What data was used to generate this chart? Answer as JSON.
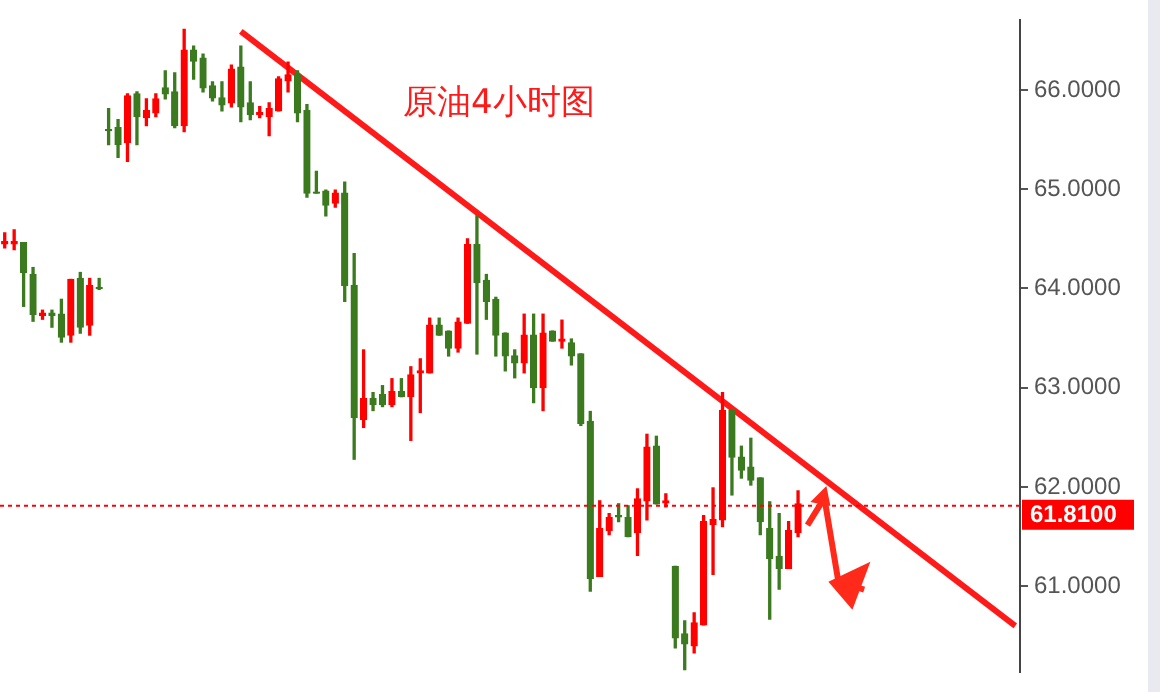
{
  "chart_data": {
    "type": "candlestick",
    "annotations": [
      "原油4小时图"
    ],
    "categories": [
      null,
      null,
      null,
      null,
      null,
      null,
      null,
      null,
      null,
      null,
      null,
      null,
      null,
      null,
      null,
      null,
      null,
      null,
      null,
      null,
      null,
      null,
      null,
      null,
      null,
      null,
      null,
      null,
      null,
      null,
      null,
      null,
      null,
      null,
      null,
      null,
      null,
      null,
      null,
      null,
      null,
      null,
      null,
      null,
      null,
      null,
      null,
      null,
      null,
      null,
      null,
      null,
      null,
      null,
      null,
      null,
      null,
      null,
      null,
      null,
      null,
      null,
      null,
      null,
      null,
      null,
      null,
      null,
      null,
      null,
      null,
      null,
      null,
      null,
      null,
      null,
      null,
      null,
      null,
      null,
      null,
      null,
      null,
      null,
      null,
      null,
      null,
      null,
      null,
      null,
      null,
      null,
      null,
      null,
      null,
      null,
      null,
      null,
      null,
      null,
      null,
      null,
      null,
      null,
      null,
      null,
      null,
      null
    ],
    "ohlc": [
      [
        64.45,
        64.56,
        64.41,
        64.47
      ],
      [
        64.45,
        64.59,
        64.39,
        64.47
      ],
      [
        64.46,
        64.46,
        63.82,
        64.16
      ],
      [
        64.14,
        64.21,
        63.67,
        63.74
      ],
      [
        63.73,
        63.78,
        63.69,
        63.75
      ],
      [
        63.75,
        63.78,
        63.61,
        63.73
      ],
      [
        63.74,
        63.89,
        63.46,
        63.51
      ],
      [
        63.53,
        64.09,
        63.46,
        64.09
      ],
      [
        64.1,
        64.16,
        63.55,
        63.61
      ],
      [
        63.63,
        64.1,
        63.53,
        64.03
      ],
      [
        64.01,
        64.1,
        63.99,
        64.0
      ],
      [
        65.6,
        65.81,
        65.45,
        65.59
      ],
      [
        65.62,
        65.7,
        65.32,
        65.45
      ],
      [
        65.47,
        65.96,
        65.28,
        65.94
      ],
      [
        65.96,
        65.98,
        65.45,
        65.73
      ],
      [
        65.72,
        65.91,
        65.64,
        65.79
      ],
      [
        65.77,
        65.96,
        65.73,
        65.91
      ],
      [
        66.02,
        66.19,
        65.91,
        65.96
      ],
      [
        65.98,
        66.17,
        65.62,
        65.64
      ],
      [
        65.64,
        66.61,
        65.58,
        66.4
      ],
      [
        66.4,
        66.44,
        66.11,
        66.29
      ],
      [
        66.32,
        66.36,
        65.98,
        66.02
      ],
      [
        66.04,
        66.08,
        65.89,
        65.92
      ],
      [
        65.92,
        66.08,
        65.79,
        65.85
      ],
      [
        65.87,
        66.25,
        65.83,
        66.21
      ],
      [
        66.23,
        66.44,
        65.68,
        65.83
      ],
      [
        65.87,
        66.08,
        65.7,
        65.75
      ],
      [
        65.75,
        65.83,
        65.72,
        65.77
      ],
      [
        65.73,
        65.87,
        65.54,
        65.81
      ],
      [
        65.79,
        66.13,
        65.79,
        66.11
      ],
      [
        66.09,
        66.28,
        65.98,
        66.15
      ],
      [
        66.15,
        66.19,
        65.68,
        65.77
      ],
      [
        65.79,
        65.85,
        64.92,
        64.96
      ],
      [
        64.97,
        65.18,
        64.96,
        64.96
      ],
      [
        64.98,
        64.99,
        64.73,
        64.84
      ],
      [
        64.86,
        64.99,
        64.82,
        64.96
      ],
      [
        64.96,
        65.07,
        63.87,
        64.03
      ],
      [
        64.03,
        64.35,
        62.28,
        62.7
      ],
      [
        62.68,
        63.38,
        62.6,
        62.89
      ],
      [
        62.89,
        62.95,
        62.77,
        62.83
      ],
      [
        62.93,
        63.02,
        62.81,
        62.83
      ],
      [
        62.83,
        63.09,
        62.81,
        62.96
      ],
      [
        62.96,
        63.09,
        62.91,
        62.91
      ],
      [
        62.91,
        63.21,
        62.47,
        63.13
      ],
      [
        63.15,
        63.29,
        62.75,
        63.17
      ],
      [
        63.15,
        63.7,
        63.15,
        63.63
      ],
      [
        63.63,
        63.7,
        63.53,
        63.53
      ],
      [
        63.57,
        63.57,
        63.32,
        63.4
      ],
      [
        63.4,
        63.7,
        63.36,
        63.66
      ],
      [
        63.65,
        64.5,
        63.65,
        64.44
      ],
      [
        64.44,
        64.73,
        63.34,
        64.06
      ],
      [
        64.08,
        64.14,
        63.69,
        63.87
      ],
      [
        63.89,
        63.91,
        63.32,
        63.53
      ],
      [
        63.55,
        63.55,
        63.17,
        63.32
      ],
      [
        63.32,
        63.38,
        63.1,
        63.25
      ],
      [
        63.25,
        63.74,
        63.15,
        63.53
      ],
      [
        63.53,
        63.74,
        62.85,
        63.0
      ],
      [
        63.0,
        63.74,
        62.77,
        63.55
      ],
      [
        63.57,
        63.57,
        63.47,
        63.47
      ],
      [
        63.47,
        63.68,
        63.4,
        63.49
      ],
      [
        63.45,
        63.49,
        63.23,
        63.32
      ],
      [
        63.34,
        63.34,
        62.62,
        62.64
      ],
      [
        62.66,
        62.76,
        60.95,
        61.08
      ],
      [
        61.1,
        61.86,
        61.1,
        61.58
      ],
      [
        61.56,
        61.73,
        61.52,
        61.69
      ],
      [
        61.71,
        61.83,
        61.65,
        61.7
      ],
      [
        61.69,
        61.81,
        61.5,
        61.5
      ],
      [
        61.54,
        61.98,
        61.31,
        61.88
      ],
      [
        61.86,
        62.53,
        61.67,
        62.4
      ],
      [
        62.41,
        62.51,
        61.83,
        61.83
      ],
      [
        61.84,
        61.93,
        61.8,
        61.86
      ],
      [
        61.2,
        61.2,
        60.38,
        60.48
      ],
      [
        60.52,
        60.65,
        60.16,
        60.42
      ],
      [
        60.4,
        60.73,
        60.33,
        60.63
      ],
      [
        60.61,
        61.71,
        60.61,
        61.65
      ],
      [
        61.62,
        61.99,
        61.12,
        61.67
      ],
      [
        61.67,
        62.95,
        61.6,
        62.77
      ],
      [
        62.77,
        62.77,
        61.92,
        62.3
      ],
      [
        62.3,
        62.41,
        62.09,
        62.17
      ],
      [
        62.2,
        62.49,
        62.02,
        62.07
      ],
      [
        62.09,
        62.09,
        61.52,
        61.65
      ],
      [
        61.58,
        61.85,
        60.67,
        61.28
      ],
      [
        61.3,
        61.73,
        60.97,
        61.18
      ],
      [
        61.18,
        61.65,
        61.18,
        61.56
      ],
      [
        61.54,
        61.96,
        61.5,
        61.83
      ],
      null,
      null,
      null,
      null,
      null,
      null,
      null,
      null,
      null,
      null,
      null,
      null,
      null,
      null,
      null,
      null,
      null,
      null,
      null,
      null,
      null,
      null,
      null
    ],
    "colors": [
      "#ff0000",
      "#ff0000",
      "#3b7a1f",
      "#3b7a1f",
      "#ff0000",
      "#3b7a1f",
      "#3b7a1f",
      "#ff0000",
      "#3b7a1f",
      "#ff0000",
      "#3b7a1f",
      "#3b7a1f",
      "#3b7a1f",
      "#ff0000",
      "#3b7a1f",
      "#ff0000",
      "#ff0000",
      "#3b7a1f",
      "#3b7a1f",
      "#ff0000",
      "#3b7a1f",
      "#3b7a1f",
      "#3b7a1f",
      "#3b7a1f",
      "#ff0000",
      "#3b7a1f",
      "#3b7a1f",
      "#ff0000",
      "#ff0000",
      "#ff0000",
      "#ff0000",
      "#3b7a1f",
      "#3b7a1f",
      "#3b7a1f",
      "#3b7a1f",
      "#ff0000",
      "#3b7a1f",
      "#3b7a1f",
      "#ff0000",
      "#3b7a1f",
      "#3b7a1f",
      "#ff0000",
      "#3b7a1f",
      "#ff0000",
      "#ff0000",
      "#ff0000",
      "#3b7a1f",
      "#3b7a1f",
      "#ff0000",
      "#ff0000",
      "#3b7a1f",
      "#3b7a1f",
      "#3b7a1f",
      "#3b7a1f",
      "#3b7a1f",
      "#ff0000",
      "#3b7a1f",
      "#ff0000",
      "#3b7a1f",
      "#ff0000",
      "#3b7a1f",
      "#3b7a1f",
      "#3b7a1f",
      "#ff0000",
      "#ff0000",
      "#3b7a1f",
      "#3b7a1f",
      "#ff0000",
      "#ff0000",
      "#3b7a1f",
      "#ff0000",
      "#3b7a1f",
      "#3b7a1f",
      "#ff0000",
      "#ff0000",
      "#ff0000",
      "#ff0000",
      "#3b7a1f",
      "#3b7a1f",
      "#3b7a1f",
      "#3b7a1f",
      "#3b7a1f",
      "#3b7a1f",
      "#ff0000",
      "#ff0000",
      null,
      null,
      null,
      null,
      null,
      null,
      null,
      null,
      null,
      null,
      null,
      null,
      null,
      null,
      null,
      null,
      null,
      null,
      null,
      null,
      null,
      null,
      null
    ],
    "series": [
      {
        "type": "line",
        "color": "#ff1a1a",
        "values": [
          null,
          null,
          null,
          null,
          null,
          null,
          null,
          null,
          null,
          null,
          null,
          null,
          null,
          null,
          null,
          null,
          null,
          null,
          null,
          null,
          null,
          null,
          null,
          null,
          null,
          66.59,
          null,
          null,
          null,
          null,
          null,
          null,
          null,
          null,
          null,
          null,
          null,
          null,
          null,
          null,
          null,
          null,
          null,
          null,
          null,
          null,
          null,
          null,
          null,
          null,
          null,
          null,
          null,
          null,
          null,
          null,
          null,
          null,
          null,
          null,
          null,
          null,
          null,
          null,
          null,
          null,
          null,
          null,
          null,
          null,
          null,
          null,
          null,
          null,
          null,
          null,
          null,
          null,
          null,
          null,
          null,
          null,
          null,
          null,
          null,
          null,
          null,
          null,
          null,
          null,
          null,
          null,
          null,
          null,
          null,
          null,
          null,
          null,
          null,
          null,
          null,
          null,
          null,
          null,
          null,
          null,
          null,
          60.6
        ]
      }
    ],
    "ylim": [
      60.14,
      66.7
    ],
    "yticks": [
      {
        "value": 61,
        "label": "61.0000"
      },
      {
        "value": 62,
        "label": "62.0000"
      },
      {
        "value": 63,
        "label": "63.0000"
      },
      {
        "value": 64,
        "label": "64.0000"
      },
      {
        "value": 65,
        "label": "65.0000"
      },
      {
        "value": 66,
        "label": "66.0000"
      }
    ],
    "ref_lines": [
      {
        "axis": "y",
        "value": 61.81,
        "label": "61.8100",
        "color": "#ff0000",
        "line_style": "dotted"
      }
    ],
    "tick_labels": "y",
    "grid": false,
    "legend": false
  }
}
